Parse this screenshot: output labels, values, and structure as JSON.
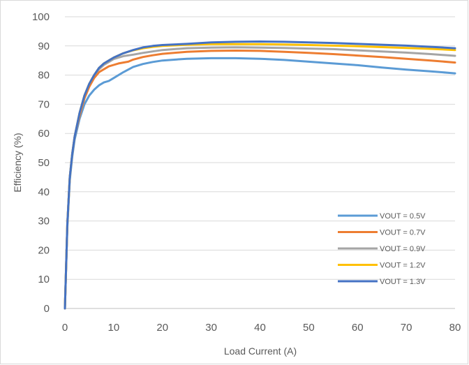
{
  "chart_data": {
    "type": "line",
    "title": "",
    "xlabel": "Load Current (A)",
    "ylabel": "Efficiency (%)",
    "xlim": [
      0,
      80
    ],
    "ylim": [
      0,
      100
    ],
    "xticks": [
      "0",
      "10",
      "20",
      "30",
      "40",
      "50",
      "60",
      "70",
      "80"
    ],
    "yticks": [
      "0",
      "10",
      "20",
      "30",
      "40",
      "50",
      "60",
      "70",
      "80",
      "90",
      "100"
    ],
    "grid": "horizontal",
    "legend_position": "bottom-right",
    "series": [
      {
        "name": "VOUT = 0.5V",
        "color": "#5b9bd5",
        "x": [
          0,
          0.5,
          1,
          1.5,
          2,
          3,
          4,
          5,
          6,
          7,
          8,
          9,
          10,
          12,
          14,
          16,
          18,
          20,
          25,
          30,
          35,
          40,
          45,
          50,
          55,
          60,
          65,
          70,
          75,
          80
        ],
        "y": [
          0,
          28,
          44,
          52,
          58,
          65,
          70,
          73,
          75,
          76.5,
          77.5,
          78,
          79,
          81,
          82.8,
          83.8,
          84.5,
          85,
          85.6,
          85.8,
          85.8,
          85.6,
          85.2,
          84.6,
          84,
          83.4,
          82.6,
          81.9,
          81.3,
          80.6
        ]
      },
      {
        "name": "VOUT = 0.7V",
        "color": "#ed7d31",
        "x": [
          0,
          0.5,
          1,
          1.5,
          2,
          3,
          4,
          5,
          6,
          7,
          8,
          9,
          10,
          11,
          12,
          13,
          14,
          16,
          18,
          20,
          25,
          30,
          35,
          40,
          45,
          50,
          55,
          60,
          65,
          70,
          75,
          80
        ],
        "y": [
          0,
          29,
          45,
          53,
          59,
          66,
          72,
          76,
          79,
          81,
          82,
          83,
          83.5,
          84,
          84.3,
          84.6,
          85.3,
          86.2,
          86.8,
          87.3,
          88,
          88.3,
          88.4,
          88.3,
          88,
          87.6,
          87.2,
          86.7,
          86.2,
          85.6,
          85,
          84.3
        ]
      },
      {
        "name": "VOUT = 0.9V",
        "color": "#a5a5a5",
        "x": [
          0,
          0.5,
          1,
          1.5,
          2,
          3,
          4,
          5,
          6,
          7,
          8,
          9,
          10,
          12,
          14,
          16,
          18,
          20,
          25,
          30,
          35,
          40,
          45,
          50,
          55,
          60,
          65,
          70,
          75,
          80
        ],
        "y": [
          0,
          29,
          45,
          53,
          59,
          67,
          73,
          77,
          80,
          82,
          83.5,
          84.5,
          85.5,
          86.5,
          87,
          87.6,
          88.1,
          88.6,
          89.2,
          89.4,
          89.5,
          89.4,
          89.3,
          89.1,
          88.9,
          88.5,
          88.1,
          87.7,
          87.2,
          86.6
        ]
      },
      {
        "name": "VOUT = 1.2V",
        "color": "#ffc000",
        "x": [
          0,
          0.5,
          1,
          1.5,
          2,
          3,
          4,
          5,
          6,
          7,
          8,
          9,
          10,
          12,
          14,
          16,
          18,
          20,
          25,
          30,
          35,
          40,
          45,
          50,
          55,
          60,
          65,
          70,
          75,
          80
        ],
        "y": [
          0,
          29,
          45,
          53,
          59,
          67,
          73,
          77,
          80,
          82.5,
          84,
          85,
          86,
          87.5,
          88.5,
          89.2,
          89.7,
          90,
          90.4,
          90.6,
          90.6,
          90.6,
          90.5,
          90.3,
          90.1,
          89.9,
          89.6,
          89.3,
          89,
          88.6
        ]
      },
      {
        "name": "VOUT = 1.3V",
        "color": "#4472c4",
        "x": [
          0,
          0.5,
          1,
          1.5,
          2,
          3,
          4,
          5,
          6,
          7,
          8,
          9,
          10,
          12,
          14,
          16,
          18,
          20,
          25,
          30,
          35,
          40,
          45,
          50,
          55,
          60,
          65,
          70,
          75,
          80
        ],
        "y": [
          0,
          29,
          45,
          53,
          59,
          67,
          73,
          77,
          80,
          82.5,
          84,
          85,
          86,
          87.5,
          88.6,
          89.5,
          90,
          90.3,
          90.7,
          91.2,
          91.4,
          91.5,
          91.4,
          91.2,
          91,
          90.7,
          90.4,
          90.1,
          89.7,
          89.2
        ]
      }
    ]
  },
  "colors": {
    "gridline": "#d9d9d9",
    "axis": "#bfbfbf",
    "text": "#595959"
  }
}
